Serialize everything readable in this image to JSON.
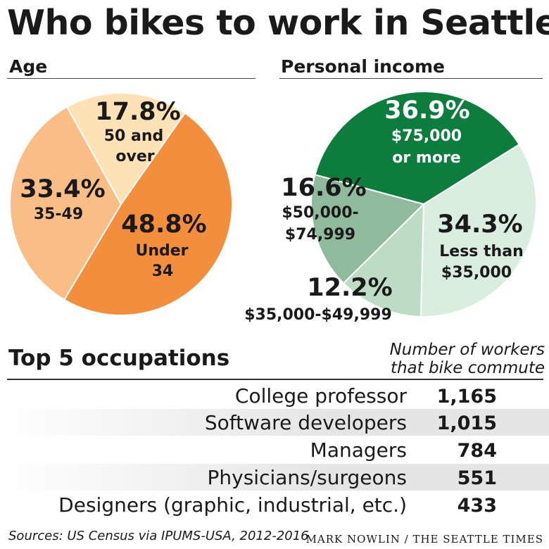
{
  "title": "Who bikes to work in Seattle",
  "chart_data": [
    {
      "type": "pie",
      "title": "Age",
      "slices": [
        {
          "pct": "48.8%",
          "value": 48.8,
          "label_lines": [
            "Under",
            "34"
          ],
          "color": "#f28e3c"
        },
        {
          "pct": "33.4%",
          "value": 33.4,
          "label_lines": [
            "35-49"
          ],
          "color": "#f9be86"
        },
        {
          "pct": "17.8%",
          "value": 17.8,
          "label_lines": [
            "50 and",
            "over"
          ],
          "color": "#fde2b6"
        }
      ]
    },
    {
      "type": "pie",
      "title": "Personal income",
      "slices": [
        {
          "pct": "34.3%",
          "value": 34.3,
          "label_lines": [
            "Less than",
            "$35,000"
          ],
          "color": "#daeee0"
        },
        {
          "pct": "12.2%",
          "value": 12.2,
          "label_lines": [
            "$35,000-$49,999"
          ],
          "color": "#bcdcc5"
        },
        {
          "pct": "16.6%",
          "value": 16.6,
          "label_lines": [
            "$50,000-",
            "$74,999"
          ],
          "color": "#8fbb9c"
        },
        {
          "pct": "36.9%",
          "value": 36.9,
          "label_lines": [
            "$75,000",
            "or more"
          ],
          "color": "#0d7d3d"
        }
      ]
    },
    {
      "type": "table",
      "title": "Top 5 occupations",
      "column_header_lines": [
        "Number of workers",
        "that bike commute"
      ],
      "rows": [
        {
          "occupation": "College professor",
          "workers": "1,165"
        },
        {
          "occupation": "Software developers",
          "workers": "1,015"
        },
        {
          "occupation": "Managers",
          "workers": "784"
        },
        {
          "occupation": "Physicians/surgeons",
          "workers": "551"
        },
        {
          "occupation": "Designers (graphic, industrial, etc.)",
          "workers": "433"
        }
      ]
    }
  ],
  "footer": {
    "source": "Sources: US Census via IPUMS-USA, 2012-2016",
    "credit": "MARK NOWLIN / THE SEATTLE TIMES"
  }
}
